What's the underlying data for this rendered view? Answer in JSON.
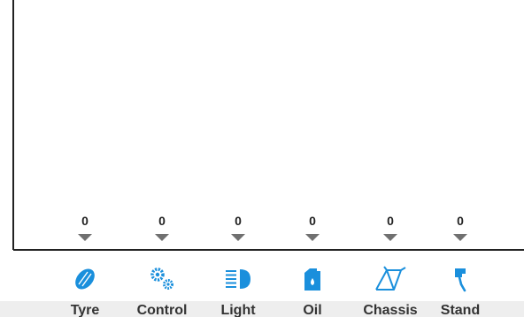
{
  "chart_data": {
    "type": "bar",
    "categories": [
      "Tyre",
      "Control",
      "Light",
      "Oil",
      "Chassis",
      "Stand"
    ],
    "values": [
      0,
      0,
      0,
      0,
      0,
      0
    ],
    "icons": [
      "tyre-icon",
      "gears-icon",
      "headlight-icon",
      "oil-can-icon",
      "bicycle-frame-icon",
      "kickstand-icon"
    ],
    "title": "",
    "xlabel": "",
    "ylabel": "",
    "grid": false,
    "legend": "none",
    "colors": {
      "icon": "#1a8fdc",
      "marker": "#707070",
      "axis": "#222222",
      "label": "#333333",
      "band": "#eeeeee"
    }
  }
}
